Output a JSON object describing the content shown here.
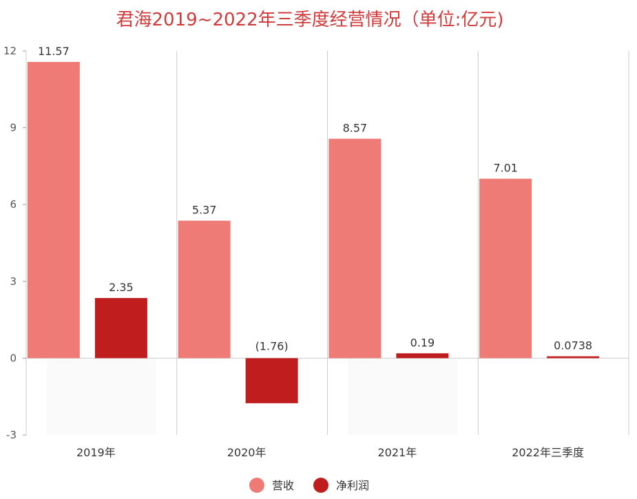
{
  "chart_data": {
    "type": "bar",
    "title": "君海2019~2022年三季度经营情况（单位:亿元)",
    "categories": [
      "2019年",
      "2020年",
      "2021年",
      "2022年三季度"
    ],
    "series": [
      {
        "name": "营收",
        "color": "#ee7b76",
        "values": [
          11.57,
          5.37,
          8.57,
          7.01
        ],
        "labels": [
          "11.57",
          "5.37",
          "8.57",
          "7.01"
        ]
      },
      {
        "name": "净利润",
        "color": "#bf1d1e",
        "values": [
          2.35,
          -1.76,
          0.19,
          0.0738
        ],
        "labels": [
          "2.35",
          "(1.76)",
          "0.19",
          "0.0738"
        ]
      }
    ],
    "yticks": [
      "12",
      "9",
      "6",
      "3",
      "0",
      "-3"
    ],
    "ylim": [
      -3,
      12
    ],
    "grid": "vertical-category-separators",
    "legend_position": "bottom-center"
  }
}
